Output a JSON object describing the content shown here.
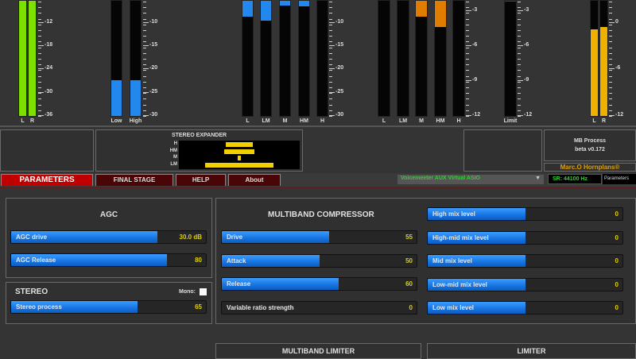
{
  "meters": {
    "input": {
      "labels": [
        "L",
        "R"
      ],
      "scale": [
        "-12",
        "-18",
        "-24",
        "-30",
        "-36"
      ],
      "levels": [
        1.0,
        1.0
      ],
      "color": "#7ee000"
    },
    "agc": {
      "labels": [
        "Low",
        "High"
      ],
      "scale": [
        "-10",
        "-15",
        "-20",
        "-25",
        "-30"
      ],
      "levels": [
        0.31,
        0.31
      ],
      "color": "#2288ee"
    },
    "mb_comp": {
      "labels": [
        "L",
        "LM",
        "M",
        "HM",
        "H"
      ],
      "scale": [
        "-10",
        "-15",
        "-20",
        "-25",
        "-30"
      ],
      "gain_reduction": [
        0.14,
        0.17,
        0.04,
        0.05,
        0
      ],
      "color": "#2288ee"
    },
    "mb_limit": {
      "labels": [
        "L",
        "LM",
        "M",
        "HM",
        "H"
      ],
      "scale": [
        "-3",
        "-6",
        "-9",
        "-12"
      ],
      "gain_reduction": [
        0,
        0,
        0.14,
        0.23,
        0
      ],
      "color": "#e07c00"
    },
    "limit": {
      "label": "Limit",
      "scale": [
        "-3",
        "-6",
        "-9",
        "-12"
      ],
      "gain_reduction": 0.01,
      "color": "#e00010"
    },
    "output": {
      "labels": [
        "L",
        "R"
      ],
      "scale": [
        "0",
        "-6",
        "-12"
      ],
      "levels": [
        0.75,
        0.77
      ],
      "color": "#f0b000"
    }
  },
  "stereo_expander": {
    "title": "STEREO EXPANDER",
    "bands": [
      {
        "label": "H",
        "width": 0.22
      },
      {
        "label": "HM",
        "width": 0.25
      },
      {
        "label": "M",
        "width": 0.03
      },
      {
        "label": "LM",
        "width": 0.56
      }
    ]
  },
  "info": {
    "title": "MB Process",
    "version": "beta v0.172",
    "brand": "Marc.O Hornplans®"
  },
  "tabs": [
    "PARAMETERS",
    "FINAL STAGE",
    "HELP",
    "About"
  ],
  "device": {
    "selected": "Voicemeeter AUX Virtual ASIO",
    "sample_rate": "SR: 44100 Hz",
    "mode": "Parameters"
  },
  "agc": {
    "title": "AGC",
    "sliders": [
      {
        "label": "AGC drive",
        "value": "30.0 dB",
        "fill": 0.75
      },
      {
        "label": "AGC Release",
        "value": "80",
        "fill": 0.8
      }
    ]
  },
  "stereo": {
    "title": "STEREO",
    "mono_label": "Mono:",
    "mono_checked": false,
    "sliders": [
      {
        "label": "Stereo process",
        "value": "65",
        "fill": 0.65
      }
    ]
  },
  "mb_compressor": {
    "title": "MULTIBAND COMPRESSOR",
    "sliders": [
      {
        "label": "Drive",
        "value": "55",
        "fill": 0.55
      },
      {
        "label": "Attack",
        "value": "50",
        "fill": 0.5
      },
      {
        "label": "Release",
        "value": "60",
        "fill": 0.6
      },
      {
        "label": "Variable ratio strength",
        "value": "0",
        "fill": 0
      }
    ]
  },
  "mix_levels": {
    "sliders": [
      {
        "label": "High mix level",
        "value": "0",
        "fill": 0.5
      },
      {
        "label": "High-mid mix level",
        "value": "0",
        "fill": 0.5
      },
      {
        "label": "Mid mix level",
        "value": "0",
        "fill": 0.5
      },
      {
        "label": "Low-mid mix level",
        "value": "0",
        "fill": 0.5
      },
      {
        "label": "Low mix level",
        "value": "0",
        "fill": 0.5
      }
    ]
  },
  "mb_limiter": {
    "title": "MULTIBAND LIMITER"
  },
  "limiter": {
    "title": "LIMITER"
  }
}
